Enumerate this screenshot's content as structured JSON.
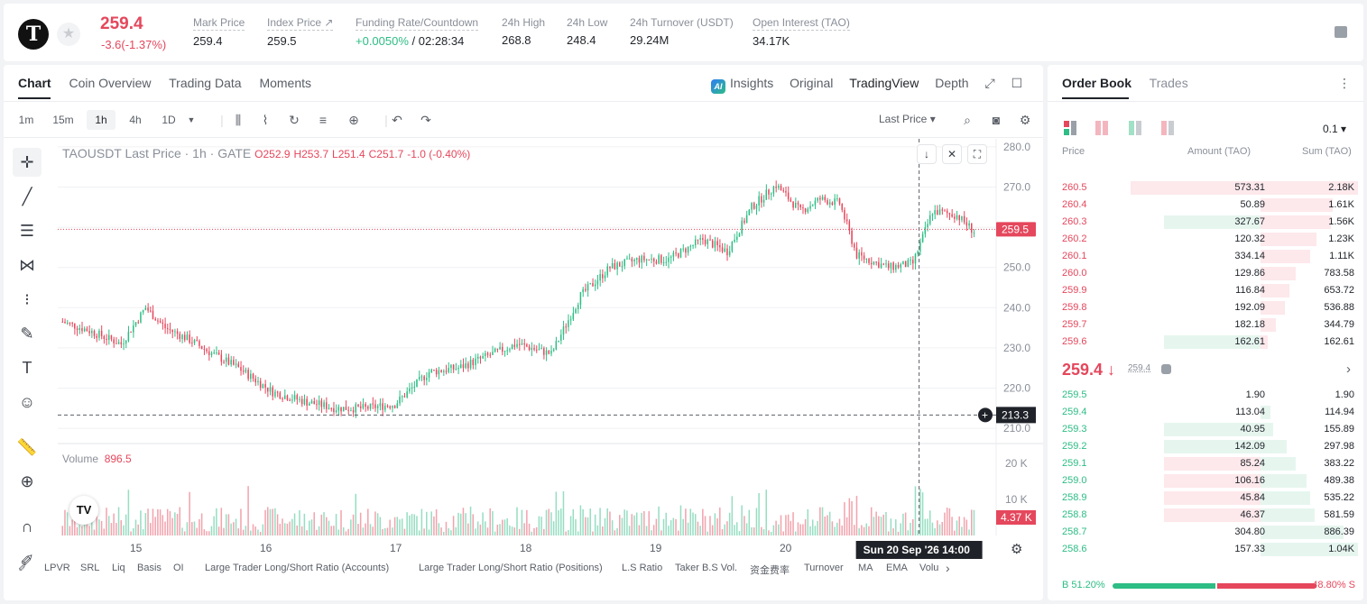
{
  "header": {
    "logo_letter": "T",
    "last_price": "259.4",
    "change": "-3.6(-1.37%)",
    "stats": [
      {
        "label": "Mark Price",
        "value": "259.4"
      },
      {
        "label": "Index Price ↗",
        "value": "259.5"
      },
      {
        "label": "Funding Rate/Countdown",
        "value_green": "+0.0050%",
        "value": " / 02:28:34"
      },
      {
        "label": "24h High",
        "value": "268.8"
      },
      {
        "label": "24h Low",
        "value": "248.4"
      },
      {
        "label": "24h Turnover (USDT)",
        "value": "29.24M"
      },
      {
        "label": "Open Interest (TAO)",
        "value": "34.17K"
      }
    ]
  },
  "chart_tabs": [
    "Chart",
    "Coin Overview",
    "Trading Data",
    "Moments"
  ],
  "view_tabs": {
    "insights": "Insights",
    "original": "Original",
    "tradingview": "TradingView",
    "depth": "Depth"
  },
  "intervals": [
    "1m",
    "15m",
    "1h",
    "4h",
    "1D"
  ],
  "active_interval": "1h",
  "price_type": "Last Price ▾",
  "legend": {
    "symbol": "TAOUSDT Last Price · 1h · GATE",
    "o": "O252.9",
    "h": "H253.7",
    "l": "L251.4",
    "c": "C251.7",
    "chg": "-1.0 (-0.40%)"
  },
  "volume_legend": {
    "label": "Volume",
    "value": "896.5"
  },
  "price_axis_labels": [
    "280.0",
    "270.0",
    "260.0",
    "250.0",
    "240.0",
    "230.0",
    "220.0",
    "210.0"
  ],
  "volume_axis_labels": [
    "20 K",
    "10 K"
  ],
  "date_labels": [
    "15",
    "16",
    "17",
    "18",
    "19",
    "20"
  ],
  "current_price_tag": "259.5",
  "crosshair_price_tag": "213.3",
  "volume_tag": "4.37 K",
  "crosshair_time": "Sun 20 Sep '26   14:00",
  "indicators": [
    "LPVR",
    "SRL",
    "Liq",
    "Basis",
    "OI",
    "Large Trader Long/Short Ratio (Accounts)",
    "Large Trader Long/Short Ratio (Positions)",
    "L.S Ratio",
    "Taker B.S Vol.",
    "资金费率",
    "Turnover",
    "MA",
    "EMA",
    "Volu"
  ],
  "colors": {
    "up": "#2dbd85",
    "down": "#e5475c",
    "accent": "#1f2329"
  },
  "chart_data": {
    "type": "candlestick",
    "title": "TAOUSDT Last Price · 1h · GATE",
    "y_range": [
      208,
      282
    ],
    "x_labels": [
      "15",
      "16",
      "17",
      "18",
      "19",
      "20"
    ],
    "anchors": [
      [
        0,
        236.5
      ],
      [
        10,
        234.5
      ],
      [
        24,
        231
      ],
      [
        34,
        240
      ],
      [
        42,
        235
      ],
      [
        52,
        232
      ],
      [
        60,
        229
      ],
      [
        72,
        225
      ],
      [
        86,
        219
      ],
      [
        100,
        216.5
      ],
      [
        112,
        215
      ],
      [
        124,
        215
      ],
      [
        136,
        216
      ],
      [
        150,
        224
      ],
      [
        162,
        225
      ],
      [
        174,
        228
      ],
      [
        186,
        231
      ],
      [
        200,
        228.5
      ],
      [
        212,
        243
      ],
      [
        224,
        250
      ],
      [
        236,
        252
      ],
      [
        248,
        252
      ],
      [
        262,
        257
      ],
      [
        272,
        254
      ],
      [
        282,
        265
      ],
      [
        292,
        270.5
      ],
      [
        302,
        264
      ],
      [
        310,
        267
      ],
      [
        318,
        266
      ],
      [
        325,
        253
      ],
      [
        338,
        250
      ],
      [
        348,
        251
      ],
      [
        356,
        264
      ],
      [
        366,
        263
      ],
      [
        373,
        259
      ]
    ],
    "volume_range": [
      0,
      22000
    ]
  },
  "orderbook": {
    "tabs": [
      "Order Book",
      "Trades"
    ],
    "tick": "0.1 ▾",
    "headers": {
      "price": "Price",
      "amount": "Amount (TAO)",
      "sum": "Sum (TAO)"
    },
    "asks": [
      {
        "price": "260.5",
        "amount": "573.31",
        "sum": "2.18K",
        "af": 0.63,
        "sf": 1.0
      },
      {
        "price": "260.4",
        "amount": "50.89",
        "sum": "1.61K",
        "af": 0.0,
        "sf": 0.74
      },
      {
        "price": "260.3",
        "amount": "327.67",
        "sum": "1.56K",
        "af": 0.47,
        "sf": 0.72,
        "ag": true
      },
      {
        "price": "260.2",
        "amount": "120.32",
        "sum": "1.23K",
        "af": 0.0,
        "sf": 0.57
      },
      {
        "price": "260.1",
        "amount": "334.14",
        "sum": "1.11K",
        "af": 0.0,
        "sf": 0.51
      },
      {
        "price": "260.0",
        "amount": "129.86",
        "sum": "783.58",
        "af": 0.0,
        "sf": 0.36
      },
      {
        "price": "259.9",
        "amount": "116.84",
        "sum": "653.72",
        "af": 0.0,
        "sf": 0.3
      },
      {
        "price": "259.8",
        "amount": "192.09",
        "sum": "536.88",
        "af": 0.0,
        "sf": 0.25
      },
      {
        "price": "259.7",
        "amount": "182.18",
        "sum": "344.79",
        "af": 0.0,
        "sf": 0.16
      },
      {
        "price": "259.6",
        "amount": "162.61",
        "sum": "162.61",
        "af": 0.47,
        "sf": 0.07,
        "ag": true
      }
    ],
    "mid_price": "259.4 ↓",
    "mark_price": "259.4",
    "bids": [
      {
        "price": "259.5",
        "amount": "1.90",
        "sum": "1.90",
        "af": 0.0,
        "sf": 0.0
      },
      {
        "price": "259.4",
        "amount": "113.04",
        "sum": "114.94",
        "af": 0.0,
        "sf": 0.1
      },
      {
        "price": "259.3",
        "amount": "40.95",
        "sum": "155.89",
        "af": 0.47,
        "sf": 0.13
      },
      {
        "price": "259.2",
        "amount": "142.09",
        "sum": "297.98",
        "af": 0.47,
        "sf": 0.27
      },
      {
        "price": "259.1",
        "amount": "85.24",
        "sum": "383.22",
        "af": 0.47,
        "sf": 0.36,
        "ar": true
      },
      {
        "price": "259.0",
        "amount": "106.16",
        "sum": "489.38",
        "af": 0.47,
        "sf": 0.47,
        "ar": true
      },
      {
        "price": "258.9",
        "amount": "45.84",
        "sum": "535.22",
        "af": 0.47,
        "sf": 0.51,
        "ar": true
      },
      {
        "price": "258.8",
        "amount": "46.37",
        "sum": "581.59",
        "af": 0.47,
        "sf": 0.56,
        "ar": true
      },
      {
        "price": "258.7",
        "amount": "304.80",
        "sum": "886.39",
        "af": 0.0,
        "sf": 0.85
      },
      {
        "price": "258.6",
        "amount": "157.33",
        "sum": "1.04K",
        "af": 0.0,
        "sf": 1.0
      }
    ],
    "buy_ratio": "B 51.20%",
    "sell_ratio": "48.80% S",
    "buy_fraction": 0.512
  }
}
